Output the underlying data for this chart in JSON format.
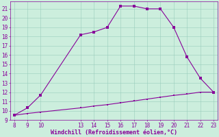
{
  "xlabel": "Windchill (Refroidissement éolien,°C)",
  "line1_x": [
    8,
    9,
    10,
    13,
    14,
    15,
    16,
    17,
    18,
    19,
    20,
    21,
    22,
    23
  ],
  "line1_y": [
    9.5,
    10.3,
    11.7,
    18.2,
    18.5,
    19.0,
    21.3,
    21.3,
    21.0,
    21.0,
    19.0,
    15.8,
    13.5,
    12.0
  ],
  "line2_x": [
    8,
    9,
    10,
    13,
    14,
    15,
    16,
    17,
    18,
    19,
    20,
    21,
    22,
    23
  ],
  "line2_y": [
    9.5,
    9.7,
    9.85,
    10.3,
    10.5,
    10.65,
    10.85,
    11.05,
    11.25,
    11.45,
    11.65,
    11.8,
    12.0,
    12.0
  ],
  "xlim": [
    7.7,
    23.3
  ],
  "ylim": [
    9,
    21.8
  ],
  "xticks": [
    8,
    9,
    10,
    13,
    14,
    15,
    16,
    17,
    18,
    19,
    20,
    21,
    22,
    23
  ],
  "yticks": [
    9,
    10,
    11,
    12,
    13,
    14,
    15,
    16,
    17,
    18,
    19,
    20,
    21
  ],
  "line_color": "#880099",
  "bg_color": "#cceedd",
  "grid_color": "#99ccbb",
  "tick_color": "#880099",
  "label_color": "#880099",
  "tick_fontsize": 5.5,
  "xlabel_fontsize": 6.0
}
